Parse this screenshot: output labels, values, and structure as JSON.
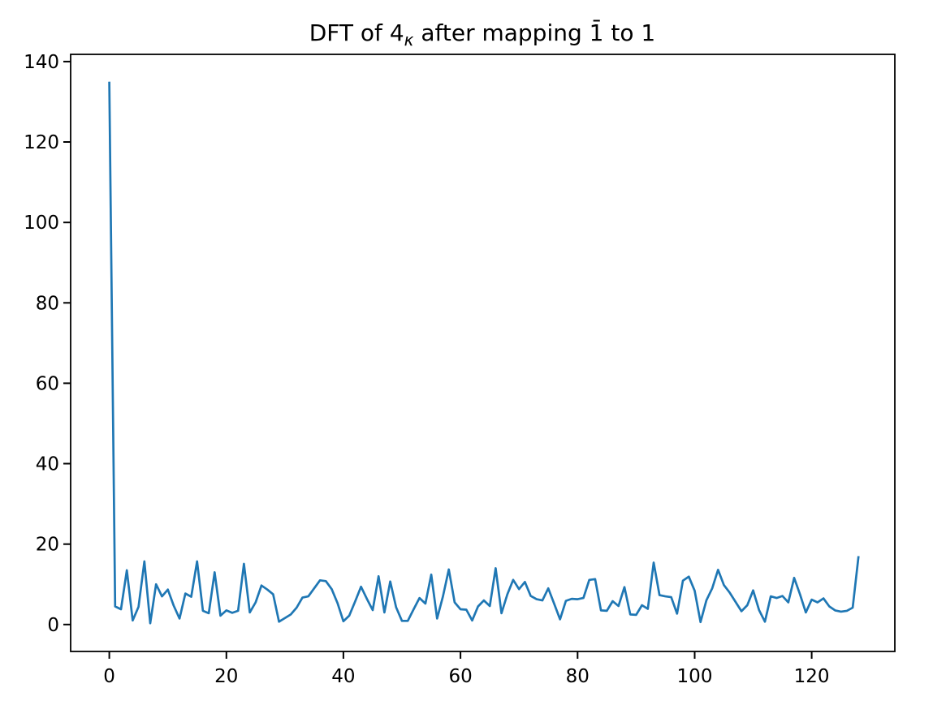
{
  "title": {
    "part1": "DFT of 4",
    "subscript": "κ",
    "part2": " after mapping ",
    "overbar_one": "1̄",
    "part3": " to 1"
  },
  "colors": {
    "line": "#1f77b4",
    "axis": "#000000",
    "background": "#ffffff"
  },
  "chart_data": {
    "type": "line",
    "title": "DFT of 4κ after mapping 1̄ to 1",
    "xlabel": "",
    "ylabel": "",
    "grid": false,
    "legend": null,
    "x_start": 0,
    "x_step": 1,
    "values": [
      135,
      4.5,
      3.8,
      13.5,
      1,
      4.4,
      15.7,
      0.3,
      10,
      7,
      8.7,
      4.7,
      1.5,
      7.7,
      6.9,
      15.7,
      3.4,
      2.8,
      13,
      2.2,
      3.5,
      2.9,
      3.4,
      15.1,
      3,
      5.5,
      9.7,
      8.7,
      7.5,
      0.7,
      1.6,
      2.5,
      4.2,
      6.7,
      7,
      9,
      11,
      10.8,
      8.8,
      5.3,
      0.8,
      2.2,
      5.7,
      9.4,
      6.4,
      3.6,
      12,
      3,
      10.7,
      4.3,
      0.9,
      0.9,
      3.8,
      6.6,
      5.2,
      12.4,
      1.5,
      7,
      13.7,
      5.5,
      3.8,
      3.7,
      1,
      4.5,
      6,
      4.6,
      14,
      2.8,
      7.5,
      11.1,
      8.8,
      10.6,
      7.1,
      6.3,
      6,
      9,
      5.2,
      1.3,
      5.9,
      6.4,
      6.3,
      6.6,
      11.1,
      11.3,
      3.5,
      3.4,
      5.8,
      4.6,
      9.3,
      2.5,
      2.4,
      4.8,
      3.9,
      15.4,
      7.3,
      7,
      6.8,
      2.7,
      10.9,
      11.9,
      8.4,
      0.6,
      6,
      9,
      13.6,
      9.8,
      7.9,
      5.6,
      3.3,
      4.8,
      8.5,
      3.6,
      0.7,
      7,
      6.6,
      7.1,
      5.5,
      11.6,
      7.5,
      3,
      6.2,
      5.5,
      6.5,
      4.5,
      3.5,
      3.2,
      3.4,
      4.2,
      17
    ],
    "xticks": [
      0,
      20,
      40,
      60,
      80,
      100,
      120
    ],
    "yticks": [
      0,
      20,
      40,
      60,
      80,
      100,
      120,
      140
    ],
    "xlim": [
      -6.6,
      134.2
    ],
    "ylim": [
      -6.7,
      141.8
    ]
  }
}
